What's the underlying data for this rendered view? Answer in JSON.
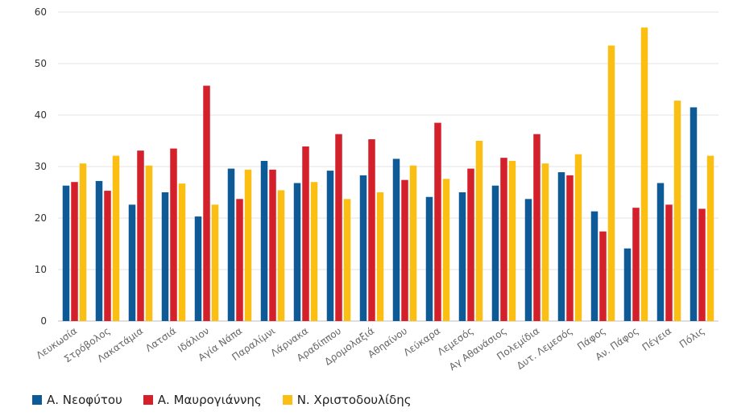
{
  "chart_data": {
    "type": "bar",
    "categories": [
      "Λευκωσία",
      "Στρόβολος",
      "Λακατάμια",
      "Λατσιά",
      "Ιδάλιον",
      "Αγία Νάπα",
      "Παραλίμνι",
      "Λάρνακα",
      "Αραδίππου",
      "Δρομολαξιά",
      "Αθηαίνου",
      "Λεύκαρα",
      "Λεμεσός",
      "Αγ Αθανάσιος",
      "Πολεμίδια",
      "Δυτ. Λεμεσός",
      "Πάφος",
      "Αν. Πάφος",
      "Πέγεια",
      "Πόλις"
    ],
    "series": [
      {
        "name": "Α. Νεοφύτου",
        "color": "#0d5a96",
        "values": [
          26.3,
          27.2,
          22.6,
          25.0,
          20.3,
          29.6,
          31.1,
          26.8,
          29.2,
          28.3,
          31.5,
          24.1,
          25.0,
          26.3,
          23.7,
          28.9,
          21.3,
          14.1,
          26.8,
          41.5
        ]
      },
      {
        "name": "Α. Μαυρογιάννης",
        "color": "#d3202a",
        "values": [
          27.0,
          25.3,
          33.1,
          33.5,
          45.7,
          23.7,
          29.4,
          33.9,
          36.3,
          35.3,
          27.4,
          38.5,
          29.6,
          31.7,
          36.3,
          28.3,
          17.4,
          22.0,
          22.6,
          21.8
        ]
      },
      {
        "name": "Ν. Χριστοδουλίδης",
        "color": "#fbbf14",
        "values": [
          30.6,
          32.1,
          30.2,
          26.7,
          22.6,
          29.4,
          25.4,
          27.0,
          23.7,
          25.0,
          30.2,
          27.6,
          35.0,
          31.1,
          30.6,
          32.4,
          53.5,
          57.0,
          42.8,
          32.1
        ]
      }
    ],
    "ylim": [
      0,
      60
    ],
    "yticks": [
      0,
      10,
      20,
      30,
      40,
      50,
      60
    ],
    "grid": true,
    "legend_position": "bottom-left"
  }
}
